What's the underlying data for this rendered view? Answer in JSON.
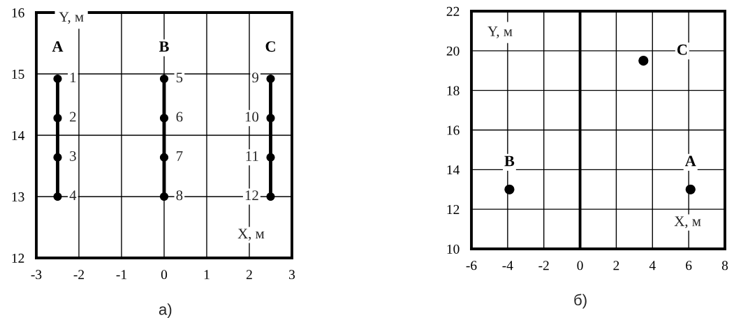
{
  "chart_data": [
    {
      "type": "line",
      "xlabel": "X, м",
      "ylabel": "Y, м",
      "marker": "circle",
      "grid": true,
      "xlim": [
        -3,
        3
      ],
      "xticks": [
        -3,
        -2,
        -1,
        0,
        1,
        2,
        3
      ],
      "ylim": [
        12,
        16
      ],
      "yticks": [
        12,
        13,
        14,
        15,
        16
      ],
      "series": [
        {
          "name": "A",
          "color": "#000000",
          "x": [
            -2.5,
            -2.5,
            -2.5,
            -2.5
          ],
          "values": [
            14.92,
            14.28,
            13.64,
            13
          ]
        },
        {
          "name": "B",
          "color": "#000000",
          "x": [
            0,
            0,
            0,
            0
          ],
          "values": [
            14.92,
            14.28,
            13.64,
            13
          ]
        },
        {
          "name": "C",
          "color": "#000000",
          "x": [
            2.5,
            2.5,
            2.5,
            2.5
          ],
          "values": [
            14.92,
            14.28,
            13.64,
            13
          ]
        }
      ],
      "annotations": [
        {
          "text": "1",
          "x": -2.5,
          "y": 14.92
        },
        {
          "text": "2",
          "x": -2.5,
          "y": 14.28
        },
        {
          "text": "3",
          "x": -2.5,
          "y": 13.64
        },
        {
          "text": "4",
          "x": -2.5,
          "y": 13
        },
        {
          "text": "5",
          "x": 0,
          "y": 14.92
        },
        {
          "text": "6",
          "x": 0,
          "y": 14.28
        },
        {
          "text": "7",
          "x": 0,
          "y": 13.64
        },
        {
          "text": "8",
          "x": 0,
          "y": 13
        },
        {
          "text": "9",
          "x": 2.5,
          "y": 14.92
        },
        {
          "text": "10",
          "x": 2.5,
          "y": 14.28
        },
        {
          "text": "11",
          "x": 2.5,
          "y": 13.64
        },
        {
          "text": "12",
          "x": 2.5,
          "y": 13
        },
        "a)"
      ]
    },
    {
      "type": "scatter",
      "xlabel": "X, м",
      "ylabel": "Y, м",
      "marker": "circle",
      "grid": true,
      "xlim": [
        -6,
        8
      ],
      "xticks": [
        -6,
        -4,
        -2,
        0,
        2,
        4,
        6,
        8
      ],
      "ylim": [
        10,
        22
      ],
      "yticks": [
        10,
        12,
        14,
        16,
        18,
        20,
        22
      ],
      "ref_lines": [
        {
          "axis": "x",
          "value": 0,
          "color": "#000000"
        }
      ],
      "series": [
        {
          "name": "A",
          "color": "#000000",
          "x": [
            6.1
          ],
          "values": [
            13
          ]
        },
        {
          "name": "B",
          "color": "#000000",
          "x": [
            -3.9
          ],
          "values": [
            13
          ]
        },
        {
          "name": "C",
          "color": "#000000",
          "x": [
            3.5
          ],
          "values": [
            19.5
          ]
        }
      ],
      "annotations": [
        "б)"
      ]
    }
  ]
}
